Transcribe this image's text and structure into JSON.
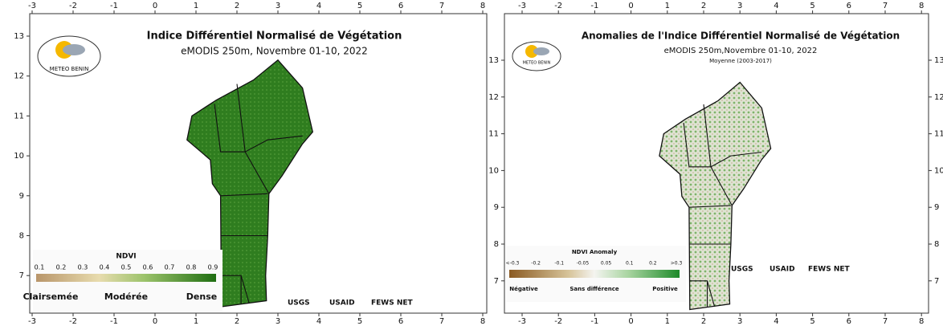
{
  "panels": [
    {
      "title": "Indice Différentiel Normalisé de Végétation",
      "subtitle": "eMODIS 250m, Novembre 01-10, 2022",
      "logo": "METEO BENIN",
      "legend": {
        "title": "NDVI",
        "ticks": [
          "0.1",
          "0.2",
          "0.3",
          "0.4",
          "0.5",
          "0.6",
          "0.7",
          "0.8",
          "0.9"
        ],
        "classes": [
          "Clairsemée",
          "Modérée",
          "Dense"
        ]
      },
      "credits": [
        "USGS",
        "USAID",
        "FEWS NET"
      ],
      "lon_ticks": [
        -3,
        -2,
        -1,
        0,
        1,
        2,
        3,
        4,
        5,
        6,
        7,
        8
      ],
      "lat_ticks": [
        7,
        8,
        9,
        10,
        11,
        12,
        13
      ]
    },
    {
      "title": "Anomalies de l'Indice Différentiel Normalisé de Végétation",
      "subtitle": "eMODIS 250m,Novembre 01-10, 2022",
      "note": "Moyenne (2003-2017)",
      "logo": "METEO BENIN",
      "legend": {
        "title": "NDVI Anomaly",
        "ticks": [
          "<-0.3",
          "-0.2",
          "-0.1",
          "-0.05",
          "0.05",
          "0.1",
          "0.2",
          ">0.3"
        ],
        "classes": [
          "Négative",
          "Sans différence",
          "Positive"
        ]
      },
      "credits": [
        "USGS",
        "USAID",
        "FEWS NET"
      ],
      "lon_ticks": [
        -3,
        -2,
        -1,
        0,
        1,
        2,
        3,
        4,
        5,
        6,
        7,
        8
      ],
      "lat_ticks": [
        7,
        8,
        9,
        10,
        11,
        12,
        13
      ]
    }
  ]
}
